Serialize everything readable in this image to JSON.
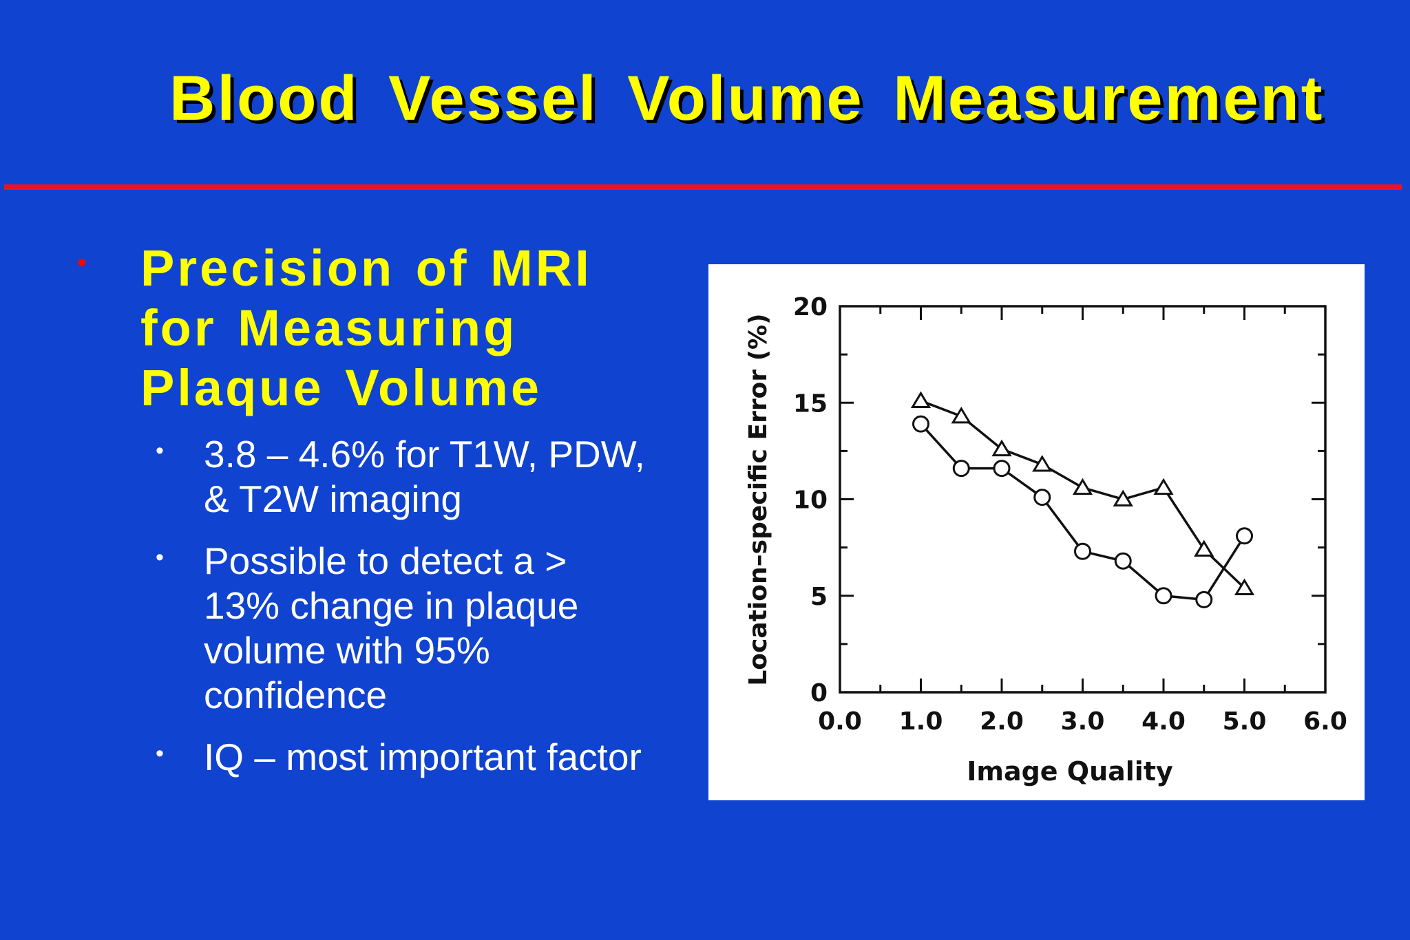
{
  "slide": {
    "title": "Blood Vessel Volume Measurement",
    "main_point": "Precision of MRI for Measuring Plaque Volume",
    "sub_points": [
      "3.8 – 4.6% for T1W, PDW, & T2W imaging",
      "Possible to detect a > 13% change in plaque volume with 95% confidence",
      "IQ – most important factor"
    ]
  },
  "colors": {
    "background": "#1043d0",
    "title": "#ffff00",
    "divider": "#ee1122",
    "bullet_main": "#ff0000",
    "text": "#ffffff"
  },
  "chart_data": {
    "type": "line",
    "xlabel": "Image Quality",
    "ylabel": "Location–specific Error (%)",
    "xlim": [
      0,
      6
    ],
    "ylim": [
      0,
      20
    ],
    "xticks": [
      "0.0",
      "1.0",
      "2.0",
      "3.0",
      "4.0",
      "5.0",
      "6.0"
    ],
    "yticks": [
      "0",
      "5",
      "10",
      "15",
      "20"
    ],
    "grid": false,
    "series": [
      {
        "marker": "triangle",
        "x": [
          1.0,
          1.5,
          2.0,
          2.5,
          3.0,
          3.5,
          4.0,
          4.5,
          5.0
        ],
        "y": [
          15.1,
          14.3,
          12.6,
          11.8,
          10.6,
          10.0,
          10.6,
          7.4,
          5.4
        ]
      },
      {
        "marker": "circle",
        "x": [
          1.0,
          1.5,
          2.0,
          2.5,
          3.0,
          3.5,
          4.0,
          4.5,
          5.0
        ],
        "y": [
          13.9,
          11.6,
          11.6,
          10.1,
          7.3,
          6.8,
          5.0,
          4.8,
          8.1
        ]
      }
    ]
  }
}
